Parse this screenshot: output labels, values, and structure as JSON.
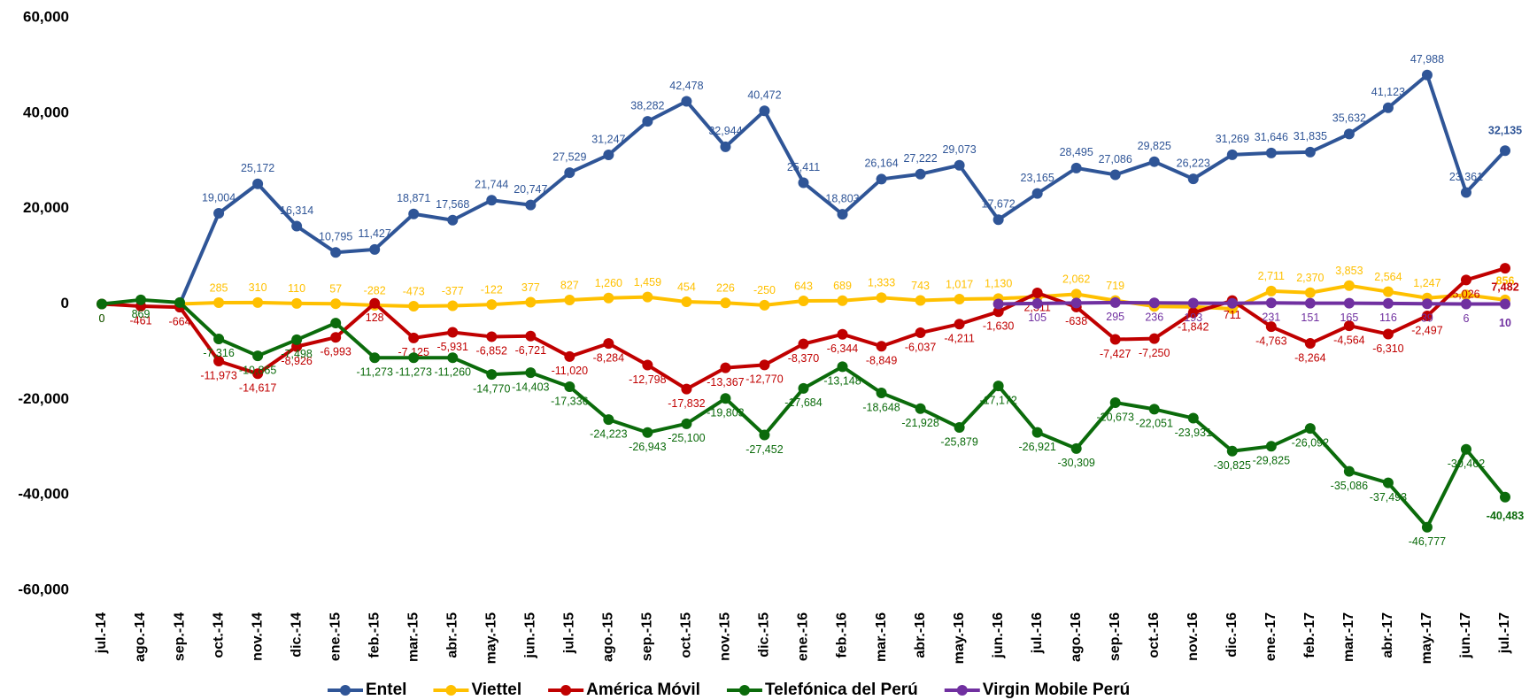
{
  "chart_data": {
    "type": "line",
    "legend": "bottom",
    "grid": false,
    "categories": [
      "jul.-14",
      "ago.-14",
      "sep.-14",
      "oct.-14",
      "nov.-14",
      "dic.-14",
      "ene.-15",
      "feb.-15",
      "mar.-15",
      "abr.-15",
      "may.-15",
      "jun.-15",
      "jul.-15",
      "ago.-15",
      "sep.-15",
      "oct.-15",
      "nov.-15",
      "dic.-15",
      "ene.-16",
      "feb.-16",
      "mar.-16",
      "abr.-16",
      "may.-16",
      "jun.-16",
      "jul.-16",
      "ago.-16",
      "sep.-16",
      "oct.-16",
      "nov.-16",
      "dic.-16",
      "ene.-17",
      "feb.-17",
      "mar.-17",
      "abr.-17",
      "may.-17",
      "jun.-17",
      "jul.-17"
    ],
    "ylim": [
      -60000,
      60000
    ],
    "yticks": [
      {
        "value": -60000,
        "label": "-60,000"
      },
      {
        "value": -40000,
        "label": "-40,000"
      },
      {
        "value": -20000,
        "label": "-20,000"
      },
      0,
      {
        "value": 20000,
        "label": "20,000"
      },
      {
        "value": 40000,
        "label": "40,000"
      },
      {
        "value": 60000,
        "label": "60,000"
      }
    ],
    "series": [
      {
        "name": "Entel",
        "color": "#2f5597",
        "values": [
          null,
          null,
          0,
          19004,
          25172,
          16314,
          10795,
          11427,
          18871,
          17568,
          21744,
          20747,
          27529,
          31247,
          38282,
          42478,
          32944,
          40472,
          25411,
          18803,
          26164,
          27222,
          29073,
          17672,
          23165,
          28495,
          27086,
          29825,
          26223,
          31269,
          31646,
          31835,
          35632,
          41123,
          47988,
          23361,
          32135
        ],
        "value_labels": [
          null,
          null,
          null,
          "19,004",
          "25,172",
          "16,314",
          "10,795",
          "11,427",
          "18,871",
          "17,568",
          "21,744",
          "20,747",
          "27,529",
          "31,247",
          "38,282",
          "42,478",
          "32,944",
          "40,472",
          "25,411",
          "18,803",
          "26,164",
          "27,222",
          "29,073",
          "17,672",
          "23,165",
          "28,495",
          "27,086",
          "29,825",
          "26,223",
          "31,269",
          "31,646",
          "31,835",
          "35,632",
          "41,123",
          "47,988",
          "23,361",
          "32,135"
        ]
      },
      {
        "name": "Viettel",
        "color": "#ffc000",
        "values": [
          null,
          null,
          0,
          285,
          310,
          110,
          57,
          -282,
          -473,
          -377,
          -122,
          377,
          827,
          1260,
          1459,
          454,
          226,
          -250,
          643,
          689,
          1333,
          743,
          1017,
          1130,
          1500,
          2062,
          719,
          -500,
          -600,
          -1000,
          2711,
          2370,
          3853,
          2564,
          1247,
          1900,
          856
        ],
        "value_labels": [
          null,
          null,
          null,
          "285",
          "310",
          "110",
          "57",
          "-282",
          "-473",
          "-377",
          "-122",
          "377",
          "827",
          "1,260",
          "1,459",
          "454",
          "226",
          "-250",
          "643",
          "689",
          "1,333",
          "743",
          "1,017",
          "1,130",
          null,
          "2,062",
          "719",
          null,
          null,
          null,
          "2,711",
          "2,370",
          "3,853",
          "2,564",
          "1,247",
          null,
          "856"
        ]
      },
      {
        "name": "América Móvil",
        "color": "#c00000",
        "values": [
          0,
          -461,
          -664,
          -11973,
          -14617,
          -8926,
          -6993,
          128,
          -7125,
          -5931,
          -6852,
          -6721,
          -11020,
          -8284,
          -12798,
          -17832,
          -13367,
          -12770,
          -8370,
          -6344,
          -8849,
          -6037,
          -4211,
          -1630,
          2311,
          -638,
          -7427,
          -7250,
          -1842,
          711,
          -4763,
          -8264,
          -4564,
          -6310,
          -2497,
          5026,
          7482
        ],
        "value_labels": [
          "0",
          "-461",
          "-664",
          "-11,973",
          "-14,617",
          "-8,926",
          "-6,993",
          "128",
          "-7,125",
          "-5,931",
          "-6,852",
          "-6,721",
          "-11,020",
          "-8,284",
          "-12,798",
          "-17,832",
          "-13,367",
          "-12,770",
          "-8,370",
          "-6,344",
          "-8,849",
          "-6,037",
          "-4,211",
          "-1,630",
          "2,311",
          "-638",
          "-7,427",
          "-7,250",
          "-1,842",
          "711",
          "-4,763",
          "-8,264",
          "-4,564",
          "-6,310",
          "-2,497",
          "5,026",
          "7,482"
        ]
      },
      {
        "name": "Telefónica del Perú",
        "color": "#0b6b0b",
        "values": [
          0,
          869,
          300,
          -7316,
          -10865,
          -7498,
          -4000,
          -11273,
          -11273,
          -11260,
          -14770,
          -14403,
          -17336,
          -24223,
          -26943,
          -25100,
          -19803,
          -27452,
          -17684,
          -13148,
          -18648,
          -21928,
          -25879,
          -17172,
          -26921,
          -30309,
          -20673,
          -22051,
          -23931,
          -30825,
          -29825,
          -26092,
          -35086,
          -37493,
          -46777,
          -30462,
          -40483
        ],
        "value_labels": [
          "0",
          "869",
          null,
          "-7,316",
          "-10,865",
          "-7,498",
          null,
          "-11,273",
          "-11,273",
          "-11,260",
          "-14,770",
          "-14,403",
          "-17,336",
          "-24,223",
          "-26,943",
          "-25,100",
          "-19,803",
          "-27,452",
          "-17,684",
          "-13,148",
          "-18,648",
          "-21,928",
          "-25,879",
          "-17,172",
          "-26,921",
          "-30,309",
          "-20,673",
          "-22,051",
          "-23,931",
          "-30,825",
          "-29,825",
          "-26,092",
          "-35,086",
          "-37,493",
          "-46,777",
          "-30,462",
          "-40,483"
        ]
      },
      {
        "name": "Virgin Mobile Perú",
        "color": "#7030a0",
        "values": [
          null,
          null,
          null,
          null,
          null,
          null,
          null,
          null,
          null,
          null,
          null,
          null,
          null,
          null,
          null,
          null,
          null,
          null,
          null,
          null,
          null,
          null,
          null,
          0,
          105,
          200,
          295,
          236,
          193,
          150,
          231,
          151,
          165,
          116,
          39,
          6,
          10
        ],
        "value_labels": [
          null,
          null,
          null,
          null,
          null,
          null,
          null,
          null,
          null,
          null,
          null,
          null,
          null,
          null,
          null,
          null,
          null,
          null,
          null,
          null,
          null,
          null,
          null,
          null,
          "105",
          null,
          "295",
          "236",
          "193",
          null,
          "231",
          "151",
          "165",
          "116",
          "39",
          "6",
          "10"
        ]
      }
    ]
  }
}
